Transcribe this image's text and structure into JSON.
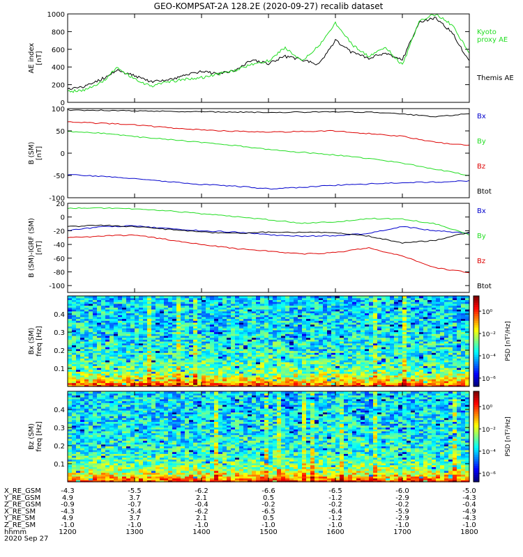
{
  "title": "GEO-KOMPSAT-2A 128.2E (2020-09-27) recalib dataset",
  "colors": {
    "themis": "#000000",
    "kyoto": "#22dd22",
    "bx": "#0000cc",
    "by": "#22dd22",
    "bz": "#dd0000",
    "btot": "#000000"
  },
  "time_axis": {
    "start": "1200",
    "end": "1800",
    "ticks": [
      "1200",
      "1300",
      "1400",
      "1500",
      "1600",
      "1700",
      "1800"
    ]
  },
  "chart_data": [
    {
      "type": "line",
      "name": "ae-panel",
      "ylabel": "AE index\n[nT]",
      "ylim": [
        0,
        1000
      ],
      "yticks": [
        0,
        200,
        400,
        600,
        800,
        1000
      ],
      "x": [
        "1200",
        "1215",
        "1230",
        "1245",
        "1300",
        "1315",
        "1330",
        "1345",
        "1400",
        "1415",
        "1430",
        "1445",
        "1500",
        "1515",
        "1530",
        "1545",
        "1600",
        "1615",
        "1630",
        "1645",
        "1700",
        "1715",
        "1730",
        "1745",
        "1800"
      ],
      "series": [
        {
          "name": "Themis AE",
          "color_key": "themis",
          "values": [
            150,
            180,
            260,
            360,
            300,
            230,
            260,
            300,
            350,
            320,
            360,
            480,
            440,
            520,
            480,
            430,
            700,
            560,
            500,
            560,
            480,
            900,
            960,
            780,
            460
          ]
        },
        {
          "name": "Kyoto\nproxy AE",
          "color_key": "kyoto",
          "values": [
            120,
            140,
            220,
            400,
            260,
            180,
            230,
            260,
            280,
            320,
            360,
            430,
            470,
            620,
            460,
            640,
            900,
            650,
            520,
            620,
            420,
            920,
            1000,
            870,
            560
          ]
        }
      ],
      "legend": "right"
    },
    {
      "type": "line",
      "name": "b-sm-panel",
      "ylabel": "B (SM)\n[nT]",
      "ylim": [
        -100,
        100
      ],
      "yticks": [
        -100,
        -50,
        0,
        50,
        100
      ],
      "x": [
        "1200",
        "1230",
        "1300",
        "1330",
        "1400",
        "1430",
        "1500",
        "1530",
        "1600",
        "1630",
        "1700",
        "1730",
        "1800"
      ],
      "series": [
        {
          "name": "Bx",
          "color_key": "bx",
          "values": [
            -48,
            -52,
            -57,
            -64,
            -70,
            -74,
            -80,
            -77,
            -72,
            -69,
            -66,
            -65,
            -62
          ]
        },
        {
          "name": "By",
          "color_key": "by",
          "values": [
            49,
            45,
            37,
            31,
            24,
            17,
            8,
            2,
            -4,
            -12,
            -22,
            -36,
            -50
          ]
        },
        {
          "name": "Bz",
          "color_key": "bz",
          "values": [
            70,
            67,
            64,
            57,
            52,
            49,
            47,
            49,
            50,
            44,
            38,
            24,
            18
          ]
        },
        {
          "name": "Btot",
          "color_key": "btot",
          "values": [
            97,
            96,
            95,
            94,
            93,
            92,
            92,
            92,
            93,
            92,
            88,
            82,
            89
          ]
        }
      ],
      "legend": "right"
    },
    {
      "type": "line",
      "name": "b-igrf-panel",
      "ylabel": "B (SM)-IGRF (SM)\n[nT]",
      "ylim": [
        -110,
        20
      ],
      "yticks": [
        -100,
        -80,
        -60,
        -40,
        -20,
        0,
        20
      ],
      "x": [
        "1200",
        "1230",
        "1300",
        "1330",
        "1400",
        "1430",
        "1500",
        "1530",
        "1600",
        "1630",
        "1700",
        "1730",
        "1800"
      ],
      "series": [
        {
          "name": "Bx",
          "color_key": "bx",
          "values": [
            -20,
            -14,
            -13,
            -17,
            -20,
            -22,
            -26,
            -28,
            -27,
            -24,
            -14,
            -20,
            -24
          ]
        },
        {
          "name": "By",
          "color_key": "by",
          "values": [
            13,
            13,
            12,
            9,
            5,
            1,
            -4,
            -9,
            -7,
            -2,
            -3,
            -10,
            -26
          ]
        },
        {
          "name": "Bz",
          "color_key": "bz",
          "values": [
            -30,
            -28,
            -26,
            -33,
            -40,
            -46,
            -50,
            -54,
            -52,
            -45,
            -57,
            -74,
            -81
          ]
        },
        {
          "name": "Btot",
          "color_key": "btot",
          "values": [
            -14,
            -12,
            -14,
            -18,
            -22,
            -24,
            -22,
            -22,
            -23,
            -28,
            -38,
            -34,
            -22
          ]
        }
      ],
      "legend": "right"
    },
    {
      "type": "heatmap",
      "name": "bx-spectrogram",
      "ylabel": "Bx (SM)\nfreq [Hz]",
      "ylim": [
        0,
        0.5
      ],
      "yticks": [
        0.1,
        0.2,
        0.3,
        0.4
      ],
      "colorbar": {
        "label": "PSD [nT²/Hz]",
        "ticks": [
          "10⁰",
          "10⁻²",
          "10⁻⁴",
          "10⁻⁶"
        ]
      }
    },
    {
      "type": "heatmap",
      "name": "bz-spectrogram",
      "ylabel": "Bz (SM)\nfreq [Hz]",
      "ylim": [
        0,
        0.5
      ],
      "yticks": [
        0.1,
        0.2,
        0.3,
        0.4
      ],
      "colorbar": {
        "label": "PSD [nT²/Hz]",
        "ticks": [
          "10⁰",
          "10⁻²",
          "10⁻⁴",
          "10⁻⁶"
        ]
      }
    }
  ],
  "ephemeris": {
    "rows": [
      {
        "label": "X_RE_GSM",
        "values": [
          "-4.3",
          "-5.5",
          "-6.2",
          "-6.6",
          "-6.5",
          "-6.0",
          "-5.0"
        ]
      },
      {
        "label": "Y_RE_GSM",
        "values": [
          "4.9",
          "3.7",
          "2.1",
          "0.5",
          "-1.2",
          "-2.9",
          "-4.3"
        ]
      },
      {
        "label": "Z_RE_GSM",
        "values": [
          "-0.9",
          "-0.7",
          "-0.4",
          "-0.2",
          "-0.2",
          "-0.2",
          "-0.4"
        ]
      },
      {
        "label": "X_RE_SM",
        "values": [
          "-4.3",
          "-5.4",
          "-6.2",
          "-6.5",
          "-6.4",
          "-5.9",
          "-4.9"
        ]
      },
      {
        "label": "Y_RE_SM",
        "values": [
          "4.9",
          "3.7",
          "2.1",
          "0.5",
          "-1.2",
          "-2.9",
          "-4.3"
        ]
      },
      {
        "label": "Z_RE_SM",
        "values": [
          "-1.0",
          "-1.0",
          "-1.0",
          "-1.0",
          "-1.0",
          "-1.0",
          "-1.0"
        ]
      },
      {
        "label": "hhmm",
        "values": [
          "1200",
          "1300",
          "1400",
          "1500",
          "1600",
          "1700",
          "1800"
        ]
      }
    ],
    "date": "2020 Sep 27"
  }
}
